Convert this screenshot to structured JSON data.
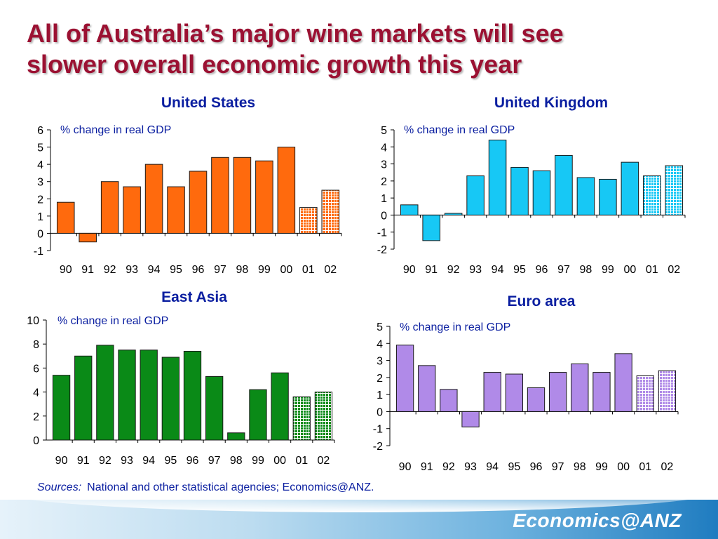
{
  "slide": {
    "title_line1": "All of Australia’s major wine markets will see",
    "title_line2": "slower overall economic growth this year",
    "sources_label": "Sources:",
    "sources_text": "National and other statistical agencies; Economics@ANZ.",
    "brand": "Economics@ANZ",
    "colors": {
      "title": "#9b1132",
      "text_blue": "#0a1ea0"
    }
  },
  "chart_data": [
    {
      "type": "bar",
      "title": "United States",
      "unit_label": "% change in real GDP",
      "categories": [
        "90",
        "91",
        "92",
        "93",
        "94",
        "95",
        "96",
        "97",
        "98",
        "99",
        "00",
        "01",
        "02"
      ],
      "values": [
        1.8,
        -0.5,
        3.0,
        2.7,
        4.0,
        2.7,
        3.6,
        4.4,
        4.4,
        4.2,
        5.0,
        1.5,
        2.5
      ],
      "forecast_categories": [
        "01",
        "02"
      ],
      "ylim": [
        -1,
        6
      ],
      "yticks": [
        -1,
        0,
        1,
        2,
        3,
        4,
        5,
        6
      ],
      "color": "#ff6a0d",
      "grid": false
    },
    {
      "type": "bar",
      "title": "United Kingdom",
      "unit_label": "% change in real GDP",
      "categories": [
        "90",
        "91",
        "92",
        "93",
        "94",
        "95",
        "96",
        "97",
        "98",
        "99",
        "00",
        "01",
        "02"
      ],
      "values": [
        0.6,
        -1.5,
        0.1,
        2.3,
        4.4,
        2.8,
        2.6,
        3.5,
        2.2,
        2.1,
        3.1,
        2.3,
        2.9
      ],
      "forecast_categories": [
        "01",
        "02"
      ],
      "ylim": [
        -2,
        5
      ],
      "yticks": [
        -2,
        -1,
        0,
        1,
        2,
        3,
        4,
        5
      ],
      "color": "#17c8f5",
      "grid": false
    },
    {
      "type": "bar",
      "title": "East Asia",
      "unit_label": "% change in real GDP",
      "categories": [
        "90",
        "91",
        "92",
        "93",
        "94",
        "95",
        "96",
        "97",
        "98",
        "99",
        "00",
        "01",
        "02"
      ],
      "values": [
        5.4,
        7.0,
        7.9,
        7.5,
        7.5,
        6.9,
        7.4,
        5.3,
        0.6,
        4.2,
        5.6,
        3.6,
        4.0
      ],
      "forecast_categories": [
        "01",
        "02"
      ],
      "ylim": [
        0,
        10
      ],
      "yticks": [
        0,
        2,
        4,
        6,
        8,
        10
      ],
      "color": "#0a8a17",
      "grid": false
    },
    {
      "type": "bar",
      "title": "Euro area",
      "unit_label": "% change in real GDP",
      "categories": [
        "90",
        "91",
        "92",
        "93",
        "94",
        "95",
        "96",
        "97",
        "98",
        "99",
        "00",
        "01",
        "02"
      ],
      "values": [
        3.9,
        2.7,
        1.3,
        -0.9,
        2.3,
        2.2,
        1.4,
        2.3,
        2.8,
        2.3,
        3.4,
        2.1,
        2.4
      ],
      "forecast_categories": [
        "01",
        "02"
      ],
      "ylim": [
        -2,
        5
      ],
      "yticks": [
        -2,
        -1,
        0,
        1,
        2,
        3,
        4,
        5
      ],
      "color": "#b08ae8",
      "grid": false
    }
  ]
}
